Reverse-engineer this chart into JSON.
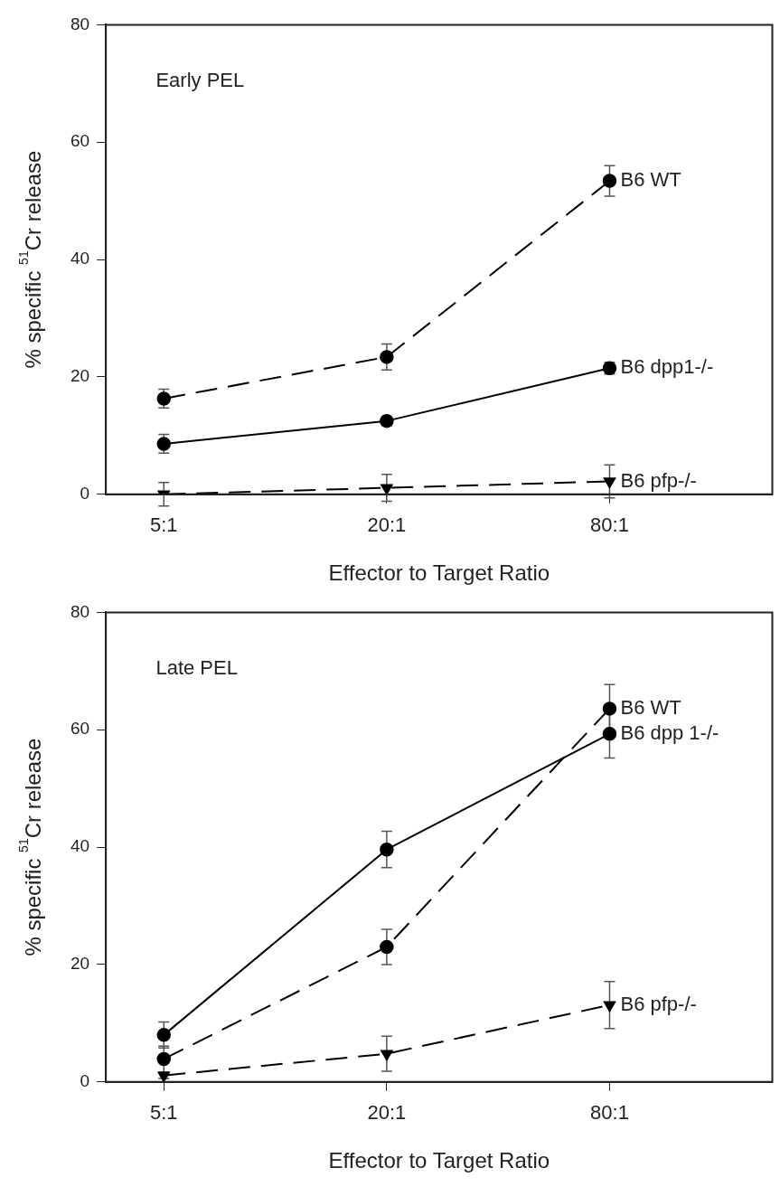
{
  "chart_data": [
    {
      "type": "line",
      "annotations": [
        "Early PEL"
      ],
      "xlabel": "Effector to Target Ratio",
      "ylabel": "% specific $^{51}$Cr release",
      "categories": [
        "5:1",
        "20:1",
        "80:1"
      ],
      "ylim": [
        0,
        80
      ],
      "yticks": [
        0,
        20,
        40,
        60,
        80
      ],
      "legend": false,
      "series": [
        {
          "name": "B6 WT",
          "color": "#000000",
          "values": [
            16.3,
            23.4,
            53.4
          ],
          "errors": [
            1.6,
            2.2,
            2.6
          ],
          "marker": "circle",
          "line_style": "dashed"
        },
        {
          "name": "B6 dpp1-/-",
          "color": "#000000",
          "values": [
            8.6,
            12.5,
            21.5
          ],
          "errors": [
            1.6,
            0.8,
            1.0
          ],
          "marker": "circle",
          "line_style": "solid"
        },
        {
          "name": "B6 pfp-/-",
          "color": "#000000",
          "values": [
            0,
            1.1,
            2.2
          ],
          "errors": [
            2.0,
            2.3,
            2.8
          ],
          "marker": "triangle",
          "line_style": "dashed"
        }
      ]
    },
    {
      "type": "line",
      "annotations": [
        "Late PEL"
      ],
      "xlabel": "Effector to Target Ratio",
      "ylabel": "% specific $^{51}$Cr release",
      "categories": [
        "5:1",
        "20:1",
        "80:1"
      ],
      "ylim": [
        0,
        80
      ],
      "yticks": [
        0,
        20,
        40,
        60,
        80
      ],
      "legend": false,
      "series": [
        {
          "name": "B6 WT",
          "color": "#000000",
          "values": [
            3.9,
            23.0,
            63.6
          ],
          "errors": [
            2.2,
            3.0,
            4.1
          ],
          "marker": "circle",
          "line_style": "dashed"
        },
        {
          "name": "B6 dpp 1-/-",
          "color": "#000000",
          "values": [
            8.0,
            39.6,
            59.3
          ],
          "errors": [
            2.2,
            3.1,
            4.1
          ],
          "marker": "circle",
          "line_style": "solid"
        },
        {
          "name": "B6 pfp-/-",
          "color": "#000000",
          "values": [
            1.1,
            4.8,
            13.1
          ],
          "errors": [
            0.5,
            3.0,
            4.0
          ],
          "marker": "triangle",
          "line_style": "dashed"
        }
      ]
    }
  ]
}
